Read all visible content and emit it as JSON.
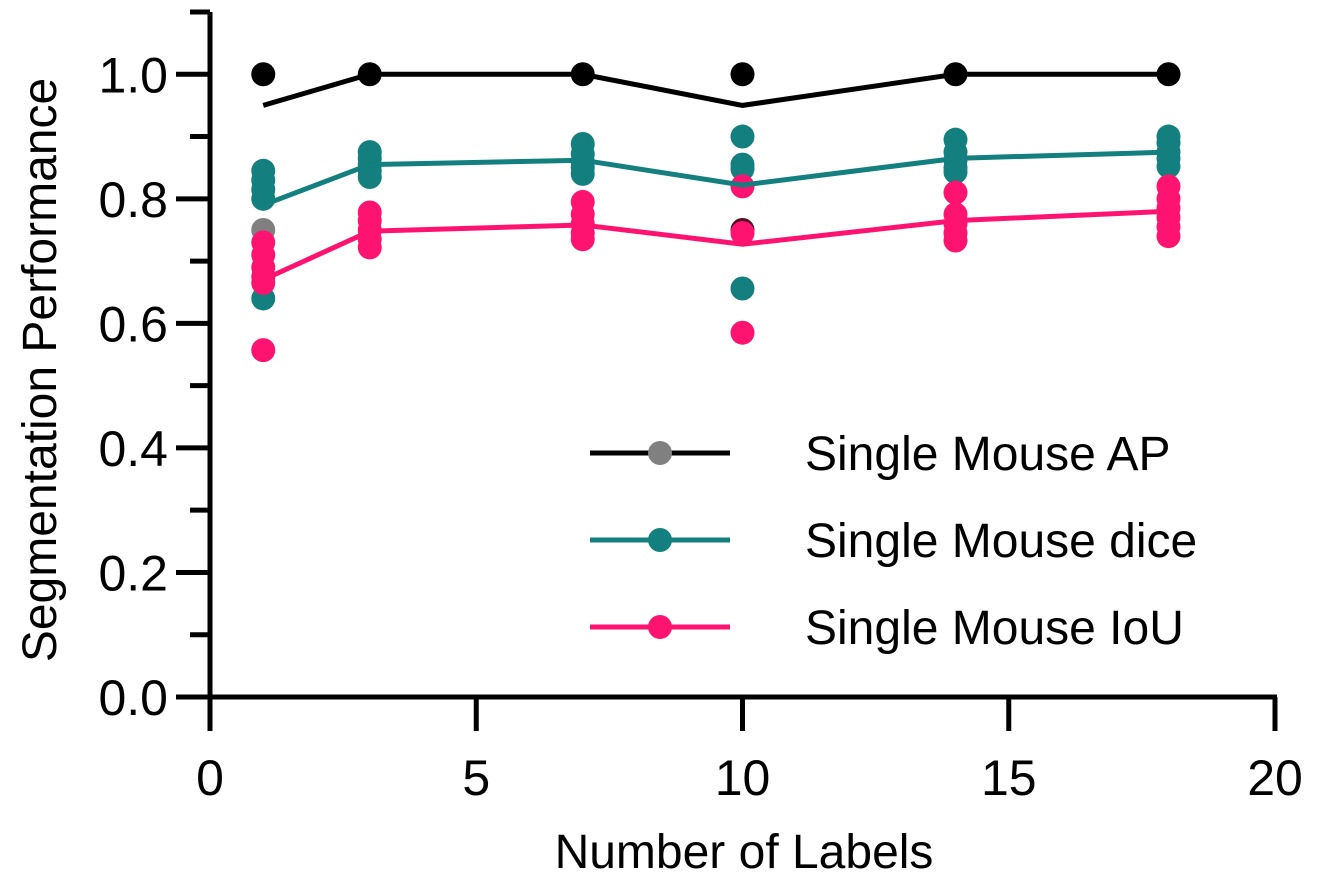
{
  "chart_data": {
    "type": "scatter",
    "title": "",
    "xlabel": "Number of Labels",
    "ylabel": "Segmentation Performance",
    "xlim": [
      0,
      20
    ],
    "ylim": [
      0,
      1.1
    ],
    "xticks": [
      0,
      5,
      10,
      15,
      20
    ],
    "xtick_labels": [
      "0",
      "5",
      "10",
      "15",
      "20"
    ],
    "yticks": [
      0,
      0.2,
      0.4,
      0.6,
      0.8,
      1.0
    ],
    "ytick_labels": [
      "0.0",
      "0.2",
      "0.4",
      "0.6",
      "0.8",
      "1.0"
    ],
    "grid": false,
    "legend_position": "bottom-right",
    "series": [
      {
        "name": "Single Mouse AP",
        "color": "#000000",
        "point_color": "#000000",
        "legend_marker_color": "#808080",
        "mean_line": {
          "x": [
            1,
            3,
            7,
            10,
            14,
            18
          ],
          "y": [
            0.95,
            1.0,
            1.0,
            0.95,
            1.0,
            1.0
          ]
        },
        "points": [
          {
            "x": 1,
            "y": 1.0
          },
          {
            "x": 1,
            "y": 0.75,
            "color": "#808080"
          },
          {
            "x": 3,
            "y": 1.0
          },
          {
            "x": 7,
            "y": 1.0
          },
          {
            "x": 10,
            "y": 1.0
          },
          {
            "x": 10,
            "y": 0.75,
            "color": "#5a0d22"
          },
          {
            "x": 14,
            "y": 1.0
          },
          {
            "x": 18,
            "y": 1.0
          }
        ]
      },
      {
        "name": "Single Mouse dice",
        "color": "#137f7f",
        "point_color": "#137f7f",
        "legend_marker_color": "#137f7f",
        "mean_line": {
          "x": [
            1,
            3,
            7,
            10,
            14,
            18
          ],
          "y": [
            0.79,
            0.855,
            0.862,
            0.822,
            0.865,
            0.875
          ]
        },
        "points": [
          {
            "x": 1,
            "y": 0.845
          },
          {
            "x": 1,
            "y": 0.83
          },
          {
            "x": 1,
            "y": 0.815
          },
          {
            "x": 1,
            "y": 0.8
          },
          {
            "x": 1,
            "y": 0.64
          },
          {
            "x": 3,
            "y": 0.875
          },
          {
            "x": 3,
            "y": 0.865
          },
          {
            "x": 3,
            "y": 0.855
          },
          {
            "x": 3,
            "y": 0.845
          },
          {
            "x": 3,
            "y": 0.835
          },
          {
            "x": 7,
            "y": 0.888
          },
          {
            "x": 7,
            "y": 0.872
          },
          {
            "x": 7,
            "y": 0.86
          },
          {
            "x": 7,
            "y": 0.85
          },
          {
            "x": 7,
            "y": 0.84
          },
          {
            "x": 10,
            "y": 0.9
          },
          {
            "x": 10,
            "y": 0.855
          },
          {
            "x": 10,
            "y": 0.848
          },
          {
            "x": 10,
            "y": 0.656
          },
          {
            "x": 14,
            "y": 0.895
          },
          {
            "x": 14,
            "y": 0.875
          },
          {
            "x": 14,
            "y": 0.862
          },
          {
            "x": 14,
            "y": 0.85
          },
          {
            "x": 14,
            "y": 0.843
          },
          {
            "x": 18,
            "y": 0.9
          },
          {
            "x": 18,
            "y": 0.89
          },
          {
            "x": 18,
            "y": 0.875
          },
          {
            "x": 18,
            "y": 0.865
          },
          {
            "x": 18,
            "y": 0.852
          }
        ]
      },
      {
        "name": "Single Mouse IoU",
        "color": "#ff1370",
        "point_color": "#ff1370",
        "legend_marker_color": "#ff1370",
        "mean_line": {
          "x": [
            1,
            3,
            7,
            10,
            14,
            18
          ],
          "y": [
            0.67,
            0.748,
            0.758,
            0.727,
            0.765,
            0.78
          ]
        },
        "points": [
          {
            "x": 1,
            "y": 0.73
          },
          {
            "x": 1,
            "y": 0.71
          },
          {
            "x": 1,
            "y": 0.69
          },
          {
            "x": 1,
            "y": 0.675
          },
          {
            "x": 1,
            "y": 0.665
          },
          {
            "x": 1,
            "y": 0.557
          },
          {
            "x": 3,
            "y": 0.778
          },
          {
            "x": 3,
            "y": 0.765
          },
          {
            "x": 3,
            "y": 0.75
          },
          {
            "x": 3,
            "y": 0.735
          },
          {
            "x": 3,
            "y": 0.722
          },
          {
            "x": 7,
            "y": 0.795
          },
          {
            "x": 7,
            "y": 0.775
          },
          {
            "x": 7,
            "y": 0.76
          },
          {
            "x": 7,
            "y": 0.745
          },
          {
            "x": 7,
            "y": 0.735
          },
          {
            "x": 10,
            "y": 0.82
          },
          {
            "x": 10,
            "y": 0.745
          },
          {
            "x": 10,
            "y": 0.585
          },
          {
            "x": 14,
            "y": 0.81
          },
          {
            "x": 14,
            "y": 0.775
          },
          {
            "x": 14,
            "y": 0.76
          },
          {
            "x": 14,
            "y": 0.745
          },
          {
            "x": 14,
            "y": 0.733
          },
          {
            "x": 18,
            "y": 0.82
          },
          {
            "x": 18,
            "y": 0.8
          },
          {
            "x": 18,
            "y": 0.785
          },
          {
            "x": 18,
            "y": 0.77
          },
          {
            "x": 18,
            "y": 0.755
          },
          {
            "x": 18,
            "y": 0.74
          }
        ]
      }
    ]
  }
}
